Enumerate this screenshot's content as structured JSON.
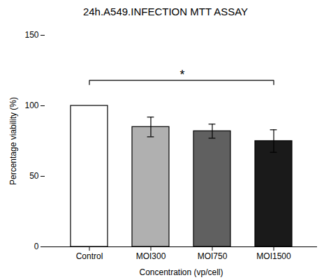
{
  "chart_data": {
    "type": "bar",
    "title": "24h.A549.INFECTION MTT ASSAY",
    "xlabel": "Concentration (vp/cell)",
    "ylabel": "Percentage viability (%)",
    "categories": [
      "Control",
      "MOI300",
      "MOI750",
      "MOI1500"
    ],
    "values": [
      100,
      85,
      82,
      75
    ],
    "errors": [
      null,
      7,
      5,
      8
    ],
    "colors": [
      "#ffffff",
      "#b0b0b0",
      "#606060",
      "#1a1a1a"
    ],
    "ylim": [
      0,
      150
    ],
    "yticks": [
      0,
      50,
      100,
      150
    ],
    "grid": false,
    "annotations": [
      {
        "text": "*",
        "from": "Control",
        "to": "MOI1500",
        "y": 118
      }
    ]
  }
}
